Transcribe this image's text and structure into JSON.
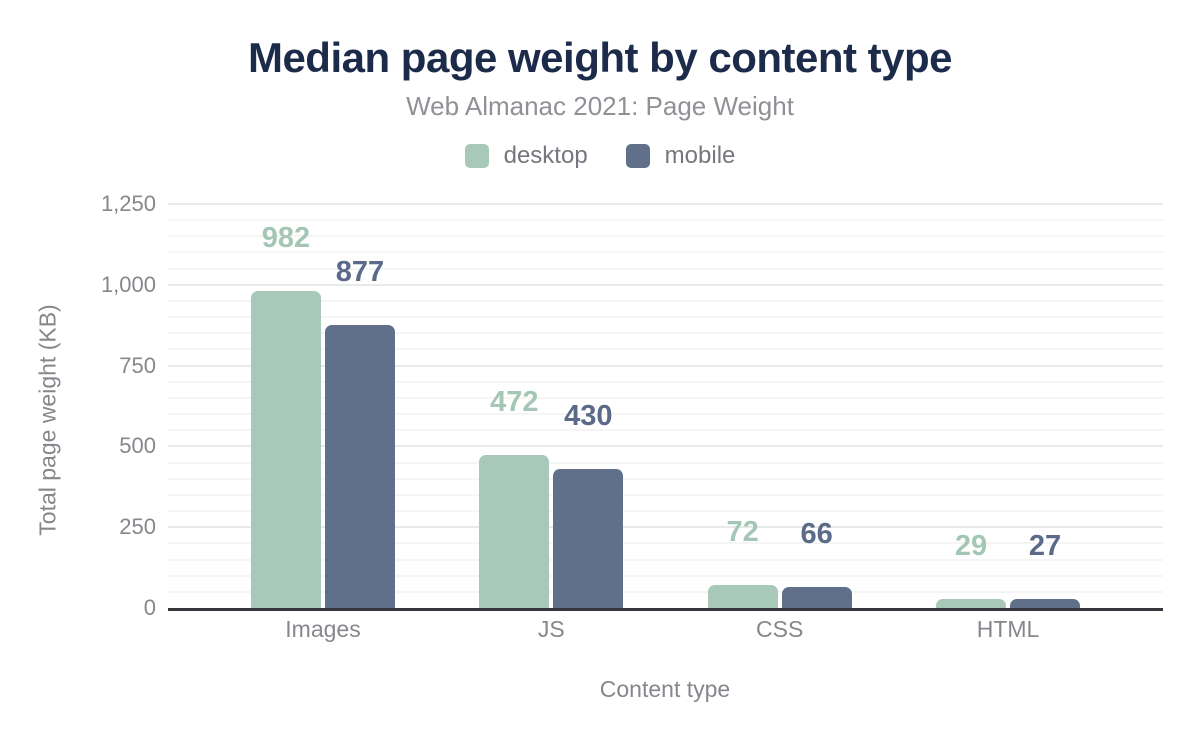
{
  "header": {
    "title": "Median page weight by content type",
    "subtitle": "Web Almanac 2021: Page Weight"
  },
  "chart_data": {
    "type": "bar",
    "title": "Median page weight by content type",
    "subtitle": "Web Almanac 2021: Page Weight",
    "categories": [
      "Images",
      "JS",
      "CSS",
      "HTML"
    ],
    "series": [
      {
        "name": "desktop",
        "color": "#a8c9b9",
        "label_color": "#a4c7b5",
        "values": [
          982,
          472,
          72,
          29
        ]
      },
      {
        "name": "mobile",
        "color": "#61708a",
        "label_color": "#5a6a88",
        "values": [
          877,
          430,
          66,
          27
        ]
      }
    ],
    "xlabel": "Content type",
    "ylabel": "Total page weight (KB)",
    "ylim": [
      0,
      1250
    ],
    "ytick_interval": 250,
    "minor_tick_interval": 50,
    "yticks": [
      "0",
      "250",
      "500",
      "750",
      "1,000",
      "1,250"
    ],
    "grid": true,
    "legend_position": "top"
  },
  "colors": {
    "title": "#1d2b4a",
    "subtitle": "#8e9196",
    "axis_text": "#85878c",
    "axis_line": "#35383d",
    "major_grid": "#e8e9ea",
    "minor_grid": "#f5f5f6",
    "background": "#ffffff"
  }
}
